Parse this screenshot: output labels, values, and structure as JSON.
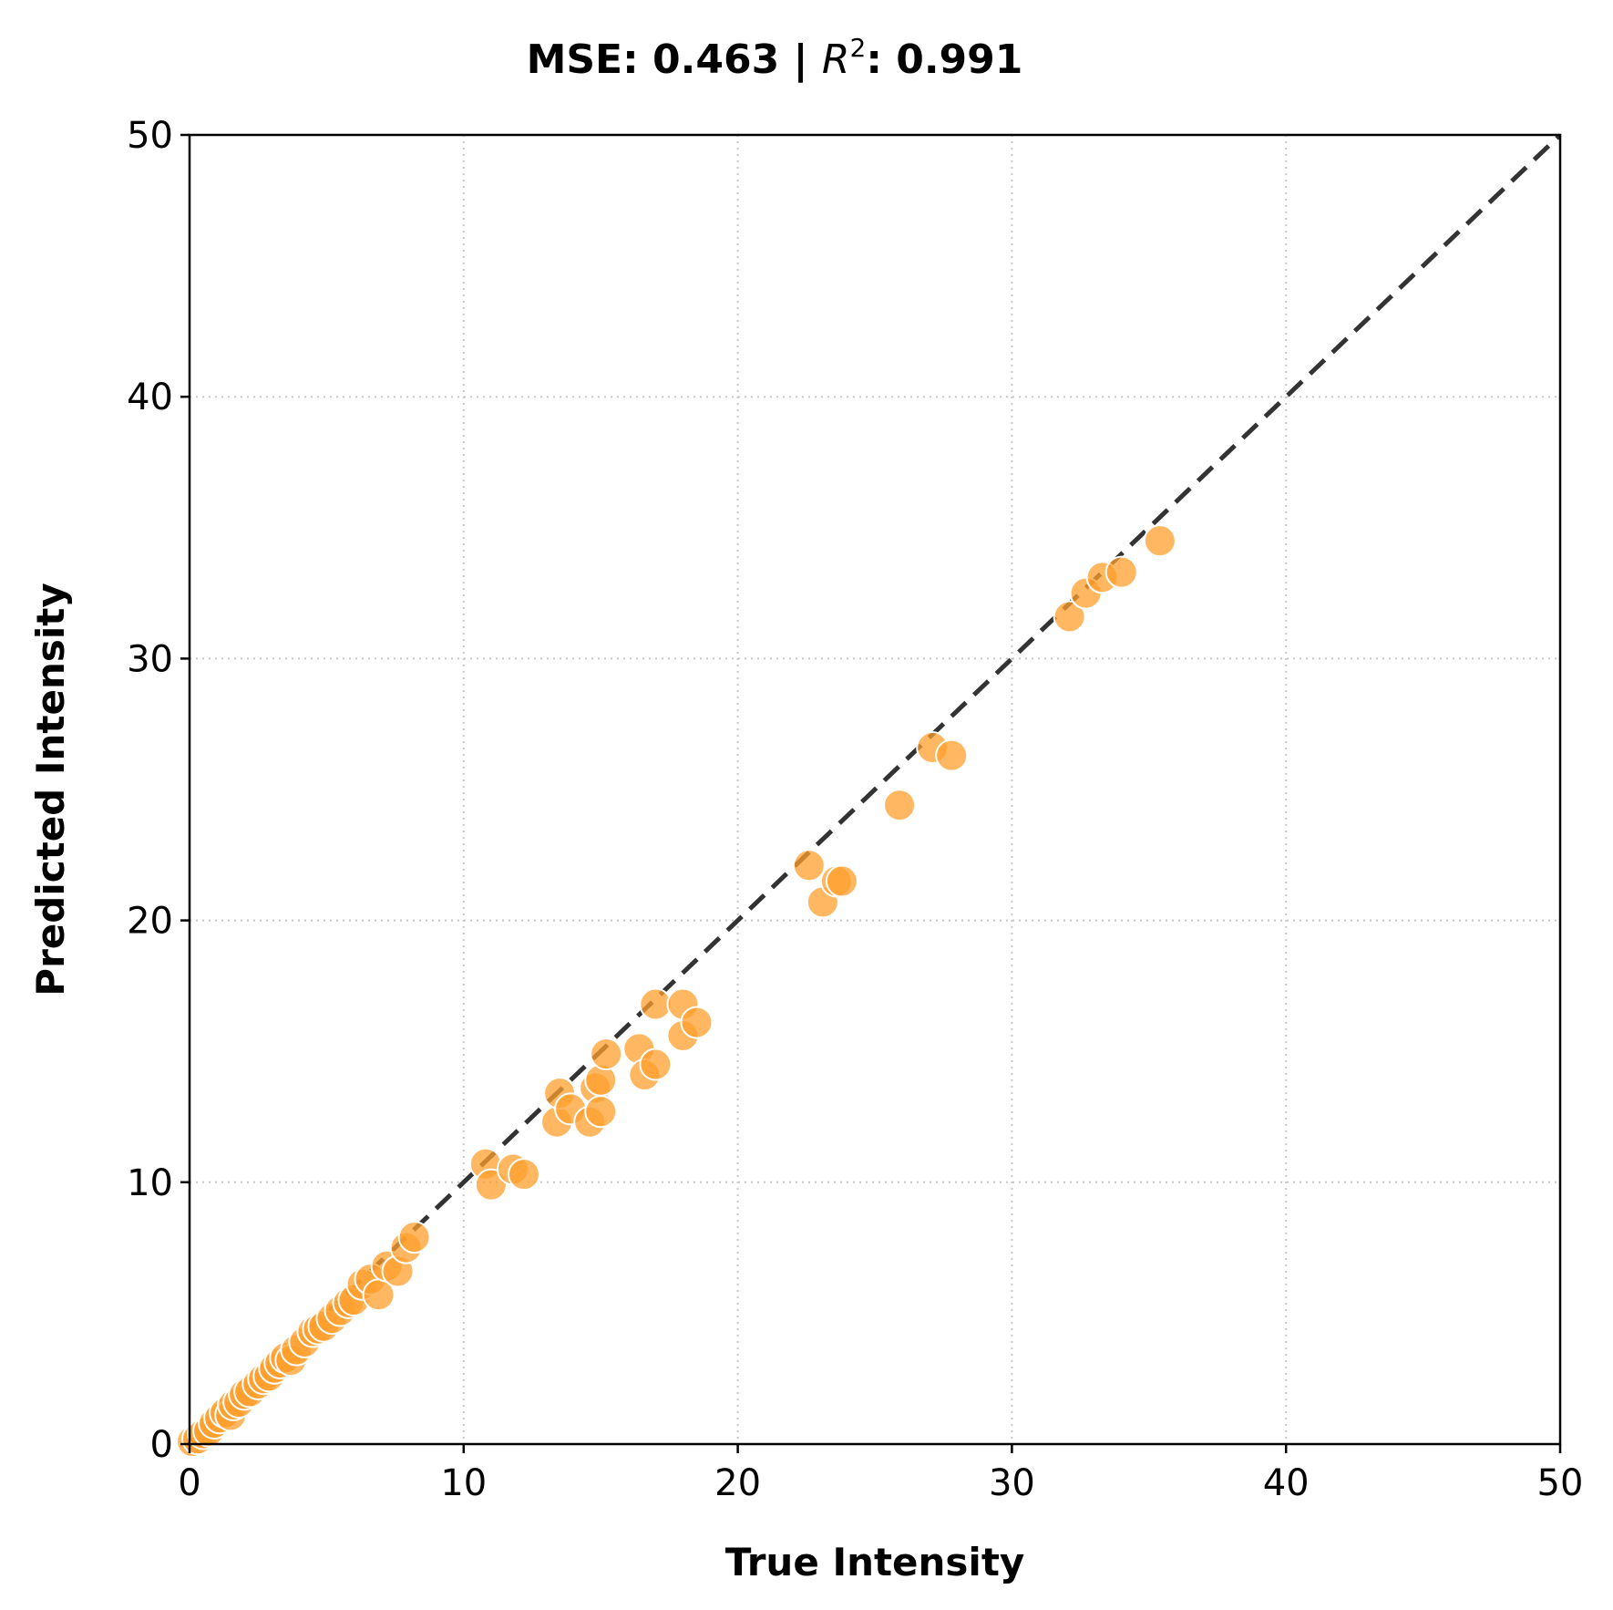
{
  "chart_data": {
    "type": "scatter",
    "title_parts": [
      "MSE: 0.463 | ",
      "R",
      "2",
      ": 0.991"
    ],
    "xlabel": "True Intensity",
    "ylabel": "Predicted Intensity",
    "xlim": [
      0,
      50
    ],
    "ylim": [
      0,
      50
    ],
    "xticks": [
      0,
      10,
      20,
      30,
      40,
      50
    ],
    "yticks": [
      0,
      10,
      20,
      30,
      40,
      50
    ],
    "xtick_labels": [
      "0",
      "10",
      "20",
      "30",
      "40",
      "50"
    ],
    "ytick_labels": [
      "0",
      "10",
      "20",
      "30",
      "40",
      "50"
    ],
    "grid": true,
    "reference_line": {
      "from": [
        0,
        0
      ],
      "to": [
        50,
        50
      ],
      "style": "dashed",
      "color": "#333333"
    },
    "point_color": "#ff9f2e",
    "points": [
      [
        0.1,
        0.1
      ],
      [
        0.3,
        0.2
      ],
      [
        0.5,
        0.4
      ],
      [
        0.7,
        0.5
      ],
      [
        0.9,
        0.8
      ],
      [
        1.1,
        1.0
      ],
      [
        1.3,
        1.2
      ],
      [
        1.5,
        1.1
      ],
      [
        1.6,
        1.5
      ],
      [
        1.8,
        1.6
      ],
      [
        2.0,
        1.9
      ],
      [
        2.2,
        2.0
      ],
      [
        2.5,
        2.3
      ],
      [
        2.7,
        2.5
      ],
      [
        2.9,
        2.6
      ],
      [
        3.1,
        2.9
      ],
      [
        3.3,
        3.1
      ],
      [
        3.5,
        3.3
      ],
      [
        3.7,
        3.2
      ],
      [
        3.9,
        3.6
      ],
      [
        4.2,
        3.9
      ],
      [
        4.5,
        4.3
      ],
      [
        4.7,
        4.4
      ],
      [
        4.9,
        4.5
      ],
      [
        5.2,
        4.8
      ],
      [
        5.5,
        5.1
      ],
      [
        5.8,
        5.4
      ],
      [
        6.0,
        5.5
      ],
      [
        6.3,
        6.1
      ],
      [
        6.6,
        6.3
      ],
      [
        6.9,
        5.7
      ],
      [
        7.2,
        6.8
      ],
      [
        7.6,
        6.6
      ],
      [
        7.9,
        7.5
      ],
      [
        8.2,
        7.9
      ],
      [
        10.8,
        10.7
      ],
      [
        11.0,
        9.9
      ],
      [
        11.8,
        10.5
      ],
      [
        12.2,
        10.3
      ],
      [
        13.4,
        12.3
      ],
      [
        13.5,
        13.4
      ],
      [
        13.9,
        12.8
      ],
      [
        14.6,
        12.3
      ],
      [
        14.8,
        13.6
      ],
      [
        15.0,
        13.9
      ],
      [
        15.0,
        12.7
      ],
      [
        15.2,
        14.9
      ],
      [
        16.4,
        15.1
      ],
      [
        16.6,
        14.1
      ],
      [
        17.0,
        16.8
      ],
      [
        17.0,
        14.5
      ],
      [
        18.0,
        16.8
      ],
      [
        18.0,
        15.6
      ],
      [
        18.5,
        16.1
      ],
      [
        22.6,
        22.1
      ],
      [
        23.1,
        20.7
      ],
      [
        23.6,
        21.5
      ],
      [
        23.8,
        21.5
      ],
      [
        25.9,
        24.4
      ],
      [
        27.1,
        26.6
      ],
      [
        27.8,
        26.3
      ],
      [
        32.1,
        31.6
      ],
      [
        32.7,
        32.5
      ],
      [
        33.3,
        33.1
      ],
      [
        34.0,
        33.3
      ],
      [
        35.4,
        34.5
      ]
    ]
  }
}
